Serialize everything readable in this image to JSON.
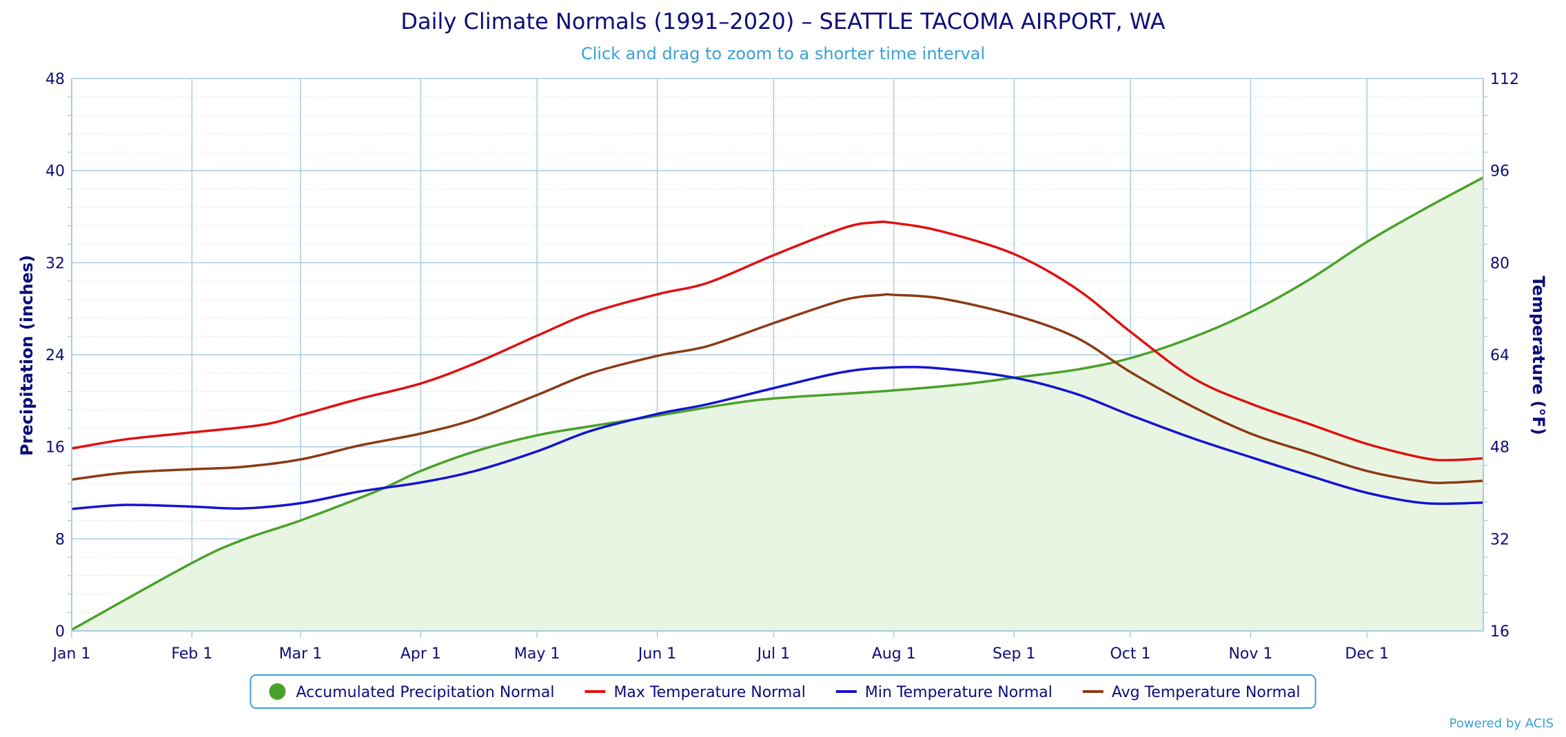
{
  "chart_data": {
    "type": "line",
    "title": "Daily Climate Normals (1991–2020) – SEATTLE TACOMA AIRPORT, WA",
    "subtitle": "Click and drag to zoom to a shorter time interval",
    "credit": "Powered by ACIS",
    "grid": true,
    "legend_placement": "bottom-center",
    "x_axis": {
      "type": "day_of_year",
      "range": [
        1,
        365
      ],
      "ticks": [
        {
          "day": 1,
          "label": "Jan 1"
        },
        {
          "day": 32,
          "label": "Feb 1"
        },
        {
          "day": 60,
          "label": "Mar 1"
        },
        {
          "day": 91,
          "label": "Apr 1"
        },
        {
          "day": 121,
          "label": "May 1"
        },
        {
          "day": 152,
          "label": "Jun 1"
        },
        {
          "day": 182,
          "label": "Jul 1"
        },
        {
          "day": 213,
          "label": "Aug 1"
        },
        {
          "day": 244,
          "label": "Sep 1"
        },
        {
          "day": 274,
          "label": "Oct 1"
        },
        {
          "day": 305,
          "label": "Nov 1"
        },
        {
          "day": 335,
          "label": "Dec 1"
        }
      ]
    },
    "y_left": {
      "label": "Precipitation (inches)",
      "range": [
        0,
        48
      ],
      "ticks": [
        "0",
        "8",
        "16",
        "24",
        "32",
        "40",
        "48"
      ]
    },
    "y_right": {
      "label": "Temperature (°F)",
      "range": [
        16,
        112
      ],
      "ticks": [
        "16",
        "32",
        "48",
        "64",
        "80",
        "96",
        "112"
      ]
    },
    "series": [
      {
        "name": "Accumulated Precipitation Normal",
        "axis": "left",
        "style": "area",
        "color": "#4aa12a",
        "fill": "#e9f5e3",
        "legend_symbol": "circle",
        "x": [
          1,
          32,
          45,
          60,
          80,
          91,
          105,
          121,
          135,
          152,
          170,
          182,
          200,
          213,
          230,
          244,
          260,
          274,
          290,
          305,
          320,
          335,
          350,
          365
        ],
        "y": [
          0.1,
          5.9,
          7.9,
          9.6,
          12.2,
          13.9,
          15.6,
          17.0,
          17.8,
          18.7,
          19.7,
          20.2,
          20.6,
          20.9,
          21.4,
          22.0,
          22.7,
          23.7,
          25.5,
          27.7,
          30.5,
          33.8,
          36.7,
          39.4
        ]
      },
      {
        "name": "Max Temperature Normal",
        "axis": "right",
        "style": "line",
        "color": "#e01010",
        "legend_symbol": "line",
        "x": [
          1,
          15,
          32,
          50,
          60,
          75,
          91,
          105,
          121,
          135,
          152,
          165,
          182,
          200,
          208,
          213,
          225,
          244,
          260,
          274,
          290,
          305,
          320,
          335,
          350,
          357,
          365
        ],
        "y": [
          47.7,
          49.3,
          50.5,
          51.8,
          53.5,
          56.3,
          59.0,
          62.5,
          67.3,
          71.3,
          74.5,
          76.5,
          81.3,
          86.0,
          87.0,
          86.9,
          85.5,
          81.5,
          75.5,
          68.0,
          60.0,
          55.5,
          52.0,
          48.5,
          46.0,
          45.7,
          46.0
        ]
      },
      {
        "name": "Min Temperature Normal",
        "axis": "right",
        "style": "line",
        "color": "#1414d2",
        "legend_symbol": "line",
        "x": [
          1,
          15,
          32,
          45,
          60,
          75,
          91,
          105,
          121,
          135,
          152,
          165,
          182,
          200,
          213,
          225,
          244,
          260,
          274,
          290,
          305,
          320,
          335,
          350,
          365
        ],
        "y": [
          37.2,
          37.9,
          37.6,
          37.3,
          38.2,
          40.2,
          41.8,
          43.8,
          47.2,
          50.8,
          53.7,
          55.4,
          58.2,
          61.0,
          61.8,
          61.6,
          60.0,
          57.2,
          53.5,
          49.5,
          46.2,
          43.0,
          40.0,
          38.2,
          38.3
        ]
      },
      {
        "name": "Avg Temperature Normal",
        "axis": "right",
        "style": "line",
        "color": "#8b3a14",
        "legend_symbol": "line",
        "x": [
          1,
          15,
          32,
          45,
          60,
          75,
          91,
          105,
          121,
          135,
          152,
          165,
          182,
          200,
          210,
          213,
          225,
          244,
          260,
          274,
          290,
          305,
          320,
          335,
          350,
          357,
          365
        ],
        "y": [
          42.3,
          43.5,
          44.1,
          44.5,
          45.8,
          48.2,
          50.3,
          52.8,
          57.0,
          60.8,
          63.8,
          65.5,
          69.5,
          73.5,
          74.4,
          74.4,
          73.8,
          70.9,
          67.0,
          61.0,
          55.0,
          50.3,
          47.0,
          43.8,
          41.9,
          41.8,
          42.1
        ]
      }
    ]
  }
}
